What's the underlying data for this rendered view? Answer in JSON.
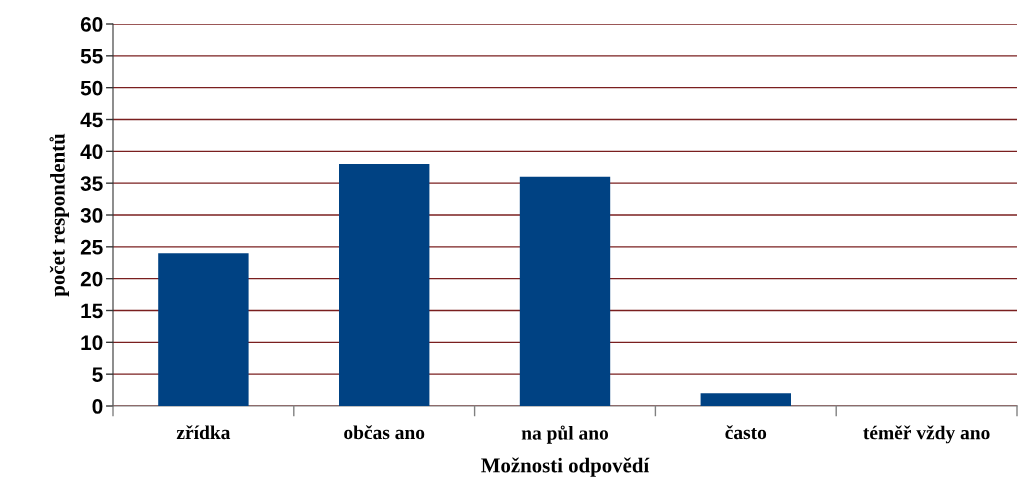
{
  "chart_data": {
    "type": "bar",
    "categories": [
      "zřídka",
      "občas ano",
      "na půl ano",
      "často",
      "téměř vždy ano"
    ],
    "values": [
      24,
      38,
      36,
      2,
      0
    ],
    "color": "#004283",
    "xlabel": "Možnosti odpovědí",
    "ylabel": "počet respondentů",
    "ylim": [
      0,
      60
    ],
    "yticks": [
      0,
      5,
      10,
      15,
      20,
      25,
      30,
      35,
      40,
      45,
      50,
      55,
      60
    ],
    "grid": "y",
    "legend": false
  }
}
